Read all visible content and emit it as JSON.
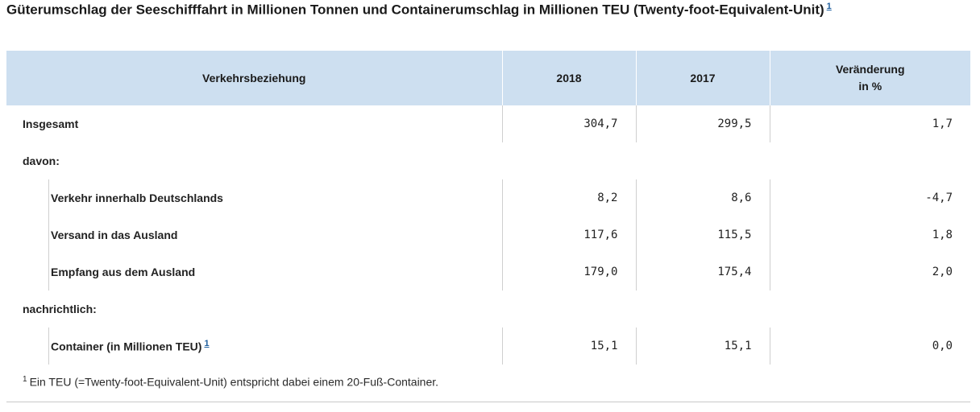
{
  "title": {
    "text": "Güterumschlag der Seeschifffahrt in Millionen Tonnen und Containerumschlag in Millionen TEU (Twenty-foot-Equivalent-Unit)",
    "footnote_ref": "1"
  },
  "table": {
    "headers": [
      "Verkehrsbeziehung",
      "2018",
      "2017",
      "Veränderung",
      "in %"
    ],
    "rows": {
      "insgesamt": {
        "label": "Insgesamt",
        "v2018": "304,7",
        "v2017": "299,5",
        "change": "1,7"
      },
      "davon": {
        "label": "davon:"
      },
      "inland": {
        "label": "Verkehr innerhalb Deutschlands",
        "v2018": "8,2",
        "v2017": "8,6",
        "change": "-4,7"
      },
      "versand": {
        "label": "Versand in das Ausland",
        "v2018": "117,6",
        "v2017": "115,5",
        "change": "1,8"
      },
      "empfang": {
        "label": "Empfang aus dem Ausland",
        "v2018": "179,0",
        "v2017": "175,4",
        "change": "2,0"
      },
      "nachrichtlich": {
        "label": "nachrichtlich:"
      },
      "container": {
        "label": "Container (in Millionen TEU)",
        "footnote_ref": "1",
        "v2018": "15,1",
        "v2017": "15,1",
        "change": "0,0"
      }
    }
  },
  "footnote": {
    "marker": "1",
    "text": "Ein TEU (=Twenty-foot-Equivalent-Unit) entspricht dabei einem 20-Fuß-Container."
  }
}
